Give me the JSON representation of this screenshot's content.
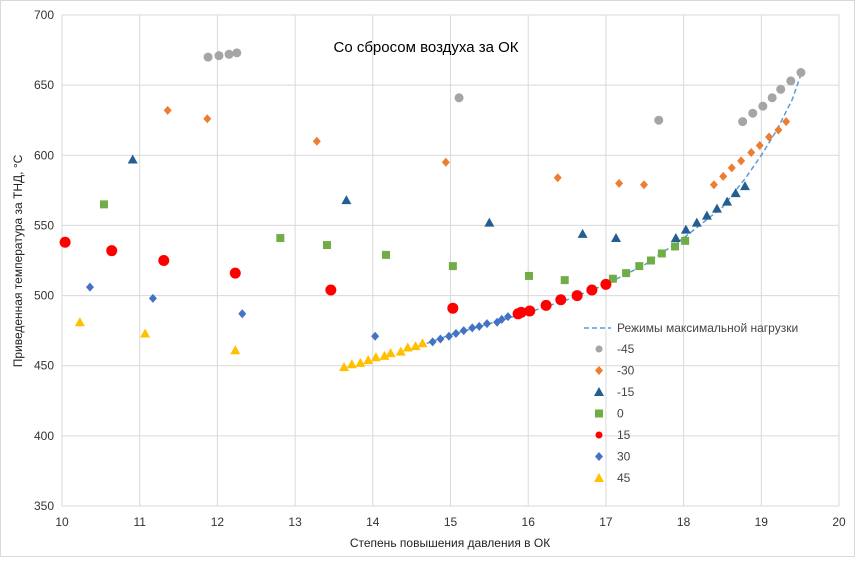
{
  "chart_data": {
    "type": "scatter",
    "title": "Со сбросом воздуха за ОК",
    "xlabel": "Степень повышения давления в ОК",
    "ylabel": "Приведенная температура за ТНД, °С",
    "xlim": [
      10,
      20
    ],
    "ylim": [
      350,
      700
    ],
    "xticks": [
      10,
      11,
      12,
      13,
      14,
      15,
      16,
      17,
      18,
      19,
      20
    ],
    "yticks": [
      350,
      400,
      450,
      500,
      550,
      600,
      650,
      700
    ],
    "grid": true,
    "legend_position": "right",
    "line_series": {
      "name": "Режимы максимальной нагрузки",
      "color": "#5b9bd5",
      "x": [
        14.5,
        15,
        15.5,
        16,
        16.5,
        17,
        17.5,
        18,
        18.5,
        18.8,
        19,
        19.2,
        19.4,
        19.5
      ],
      "y": [
        462,
        472,
        480,
        488,
        497,
        508,
        522,
        541,
        563,
        584,
        600,
        618,
        640,
        656
      ]
    },
    "series": [
      {
        "name": "-45",
        "marker": "circle",
        "color": "#a5a5a5",
        "x": [
          11.88,
          12.02,
          12.15,
          12.25,
          15.11,
          17.68,
          18.76,
          18.89,
          19.02,
          19.14,
          19.25,
          19.38,
          19.51
        ],
        "y": [
          670,
          671,
          672,
          673,
          641,
          625,
          624,
          630,
          635,
          641,
          647,
          653,
          659
        ]
      },
      {
        "name": "-30",
        "marker": "diamond",
        "color": "#ed7d31",
        "x": [
          11.36,
          11.87,
          13.28,
          14.94,
          16.38,
          17.17,
          17.49,
          18.39,
          18.51,
          18.62,
          18.74,
          18.87,
          18.98,
          19.1,
          19.22,
          19.32
        ],
        "y": [
          632,
          626,
          610,
          595,
          584,
          580,
          579,
          579,
          585,
          591,
          596,
          602,
          607,
          613,
          618,
          624
        ]
      },
      {
        "name": "-15",
        "marker": "triangle",
        "color": "#255e91",
        "x": [
          10.91,
          13.66,
          15.5,
          16.7,
          17.13,
          17.9,
          18.03,
          18.17,
          18.3,
          18.43,
          18.56,
          18.67,
          18.79
        ],
        "y": [
          597,
          568,
          552,
          544,
          541,
          541,
          547,
          552,
          557,
          562,
          567,
          573,
          578
        ]
      },
      {
        "name": "0",
        "marker": "square",
        "color": "#70ad47",
        "x": [
          10.54,
          12.81,
          13.41,
          14.17,
          15.03,
          16.01,
          16.47,
          17.09,
          17.26,
          17.43,
          17.58,
          17.72,
          17.89,
          18.02
        ],
        "y": [
          565,
          541,
          536,
          529,
          521,
          514,
          511,
          512,
          516,
          521,
          525,
          530,
          535,
          539
        ]
      },
      {
        "name": "15",
        "marker": "circle",
        "color": "#ff0000",
        "x": [
          10.04,
          10.64,
          11.31,
          12.23,
          13.46,
          15.03,
          15.87,
          15.91,
          16.02,
          16.23,
          16.42,
          16.63,
          16.82,
          17.0
        ],
        "y": [
          538,
          532,
          525,
          516,
          504,
          491,
          487,
          488,
          489,
          493,
          497,
          500,
          504,
          508
        ]
      },
      {
        "name": "30",
        "marker": "diamond",
        "color": "#4472c4",
        "x": [
          10.36,
          11.17,
          12.32,
          14.03,
          14.77,
          14.87,
          14.98,
          15.07,
          15.17,
          15.28,
          15.37,
          15.47,
          15.6,
          15.66,
          15.74
        ],
        "y": [
          506,
          498,
          487,
          471,
          467,
          469,
          471,
          473,
          475,
          477,
          478,
          480,
          481,
          483,
          485
        ]
      },
      {
        "name": "45",
        "marker": "triangle",
        "color": "#ffc000",
        "x": [
          10.23,
          11.07,
          12.23,
          13.63,
          13.73,
          13.84,
          13.94,
          14.04,
          14.15,
          14.23,
          14.36,
          14.45,
          14.55,
          14.64
        ],
        "y": [
          481,
          473,
          461,
          449,
          451,
          452,
          454,
          456,
          457,
          459,
          460,
          463,
          464,
          466
        ]
      }
    ]
  }
}
